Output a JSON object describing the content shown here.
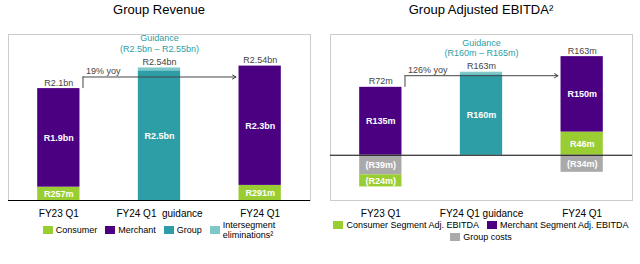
{
  "chart_data": [
    {
      "type": "bar",
      "title": "Group Revenue",
      "stacked": true,
      "data_labels": true,
      "tick_labels": "x",
      "grid": false,
      "legend": "bottom",
      "categories": [
        "FY23 Q1",
        "FY24 Q1  guidance",
        "FY24 Q1"
      ],
      "ylim": [
        0,
        3200
      ],
      "series": [
        {
          "name": "Consumer",
          "color": "#9ACD32",
          "values": [
            257,
            null,
            291
          ],
          "value_labels": [
            "R257m",
            null,
            "R291m"
          ]
        },
        {
          "name": "Merchant",
          "color": "#4B0082",
          "values": [
            1900,
            null,
            2300
          ],
          "value_labels": [
            "R1.9bn",
            null,
            "R2.3bn"
          ]
        },
        {
          "name": "Group",
          "color": "#2E9EA6",
          "values": [
            null,
            2500,
            null
          ],
          "value_labels": [
            null,
            "R2.5bn",
            null
          ]
        },
        {
          "name": "Intersegment\neliminations²",
          "color": "#7EC8C8",
          "values": [
            null,
            55,
            null
          ]
        }
      ],
      "annotations": [
        {
          "text": "R2.1bn",
          "x": "FY23 Q1"
        },
        {
          "text": "R2.54bn",
          "x": "FY24 Q1  guidance"
        },
        {
          "text": "Guidance\n(R2.5bn – R2.55bn)",
          "x": "FY24 Q1  guidance",
          "color": "#2E9EA6"
        },
        {
          "text": "R2.54bn",
          "x": "FY24 Q1"
        },
        {
          "text": "19% yoy",
          "from": "FY23 Q1",
          "to": "FY24 Q1",
          "arrow": true
        }
      ]
    },
    {
      "type": "bar",
      "title": "Group Adjusted EBITDA²",
      "stacked": true,
      "data_labels": true,
      "tick_labels": "x",
      "grid": false,
      "legend": "bottom",
      "categories": [
        "FY23 Q1",
        "FY24 Q1 guidance",
        "FY24 Q1"
      ],
      "ylim": [
        -90,
        240
      ],
      "series": [
        {
          "name": "Consumer Segment Adj. EBITDA",
          "color": "#9ACD32",
          "values": [
            -24,
            null,
            46
          ],
          "value_labels": [
            "(R24m)",
            null,
            "R46m"
          ]
        },
        {
          "name": "Merchant Segment Adj. EBITDA",
          "color": "#4B0082",
          "values": [
            135,
            null,
            150
          ],
          "value_labels": [
            "R135m",
            null,
            "R150m"
          ]
        },
        {
          "color": "#2E9EA6",
          "values": [
            null,
            160,
            null
          ],
          "value_labels": [
            null,
            "R160m",
            null
          ]
        },
        {
          "color": "#7EC8C8",
          "values": [
            null,
            5,
            null
          ]
        },
        {
          "name": "Group costs",
          "color": "#AAAAAA",
          "values": [
            -39,
            null,
            -34
          ],
          "value_labels": [
            "(R39m)",
            null,
            "(R34m)"
          ]
        }
      ],
      "annotations": [
        {
          "text": "R72m",
          "x": "FY23 Q1"
        },
        {
          "text": "R163m",
          "x": "FY24 Q1 guidance"
        },
        {
          "text": "Guidance\n(R160m – R165m)",
          "x": "FY24 Q1 guidance",
          "color": "#2E9EA6"
        },
        {
          "text": "R163m",
          "x": "FY24 Q1"
        },
        {
          "text": "126% yoy",
          "from": "FY23 Q1",
          "to": "FY24 Q1",
          "arrow": true
        }
      ]
    }
  ]
}
